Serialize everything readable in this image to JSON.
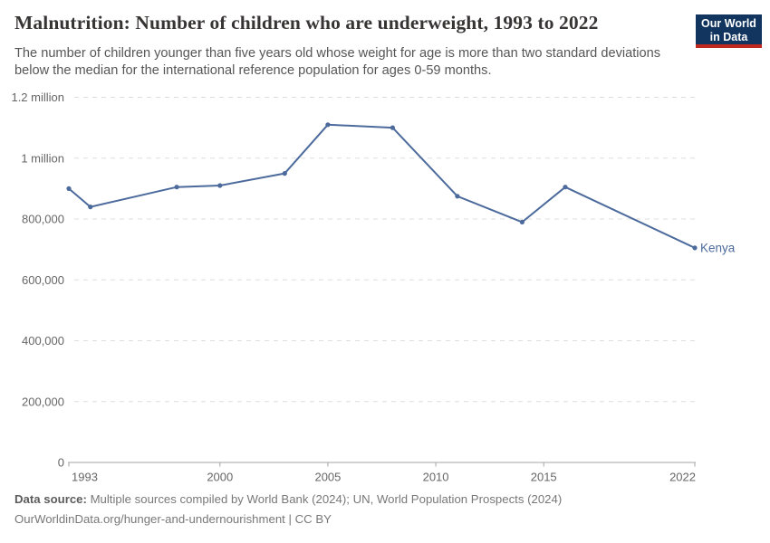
{
  "header": {
    "title": "Malnutrition: Number of children who are underweight, 1993 to 2022",
    "subtitle": "The number of children younger than five years old whose weight for age is more than two standard deviations below the median for the international reference population for ages 0-59 months.",
    "logo": {
      "line1": "Our World",
      "line2": "in Data",
      "bg_color": "#12355f",
      "accent_color": "#c0291f"
    }
  },
  "chart_data": {
    "type": "line",
    "title": "Malnutrition: Number of children who are underweight, 1993 to 2022",
    "xlabel": "",
    "ylabel": "",
    "grid": "horizontal dashed",
    "legend_position": "end-of-line entity label",
    "x": {
      "min": 1993,
      "max": 2022,
      "ticks": [
        1993,
        2000,
        2005,
        2010,
        2015,
        2022
      ]
    },
    "y": {
      "min": 0,
      "max": 1200000,
      "ticks": [
        {
          "value": 0,
          "label": "0"
        },
        {
          "value": 200000,
          "label": "200,000"
        },
        {
          "value": 400000,
          "label": "400,000"
        },
        {
          "value": 600000,
          "label": "600,000"
        },
        {
          "value": 800000,
          "label": "800,000"
        },
        {
          "value": 1000000,
          "label": "1 million"
        },
        {
          "value": 1200000,
          "label": "1.2 million"
        }
      ]
    },
    "series": [
      {
        "name": "Kenya",
        "color": "#4C6A9C",
        "points": [
          {
            "year": 1993,
            "value": 900000
          },
          {
            "year": 1994,
            "value": 840000
          },
          {
            "year": 1998,
            "value": 905000
          },
          {
            "year": 2000,
            "value": 910000
          },
          {
            "year": 2003,
            "value": 950000
          },
          {
            "year": 2005,
            "value": 1110000
          },
          {
            "year": 2008,
            "value": 1100000
          },
          {
            "year": 2011,
            "value": 875000
          },
          {
            "year": 2014,
            "value": 790000
          },
          {
            "year": 2016,
            "value": 905000
          },
          {
            "year": 2022,
            "value": 705000
          }
        ]
      }
    ],
    "colors": {
      "gridline": "#dddddd",
      "axis": "#a5a5a5",
      "tick_text": "#666666"
    }
  },
  "footer": {
    "datasource_label": "Data source:",
    "datasource_text": "Multiple sources compiled by World Bank (2024); UN, World Population Prospects (2024)",
    "url": "OurWorldinData.org/hunger-and-undernourishment",
    "separator": "|",
    "license": "CC BY"
  }
}
